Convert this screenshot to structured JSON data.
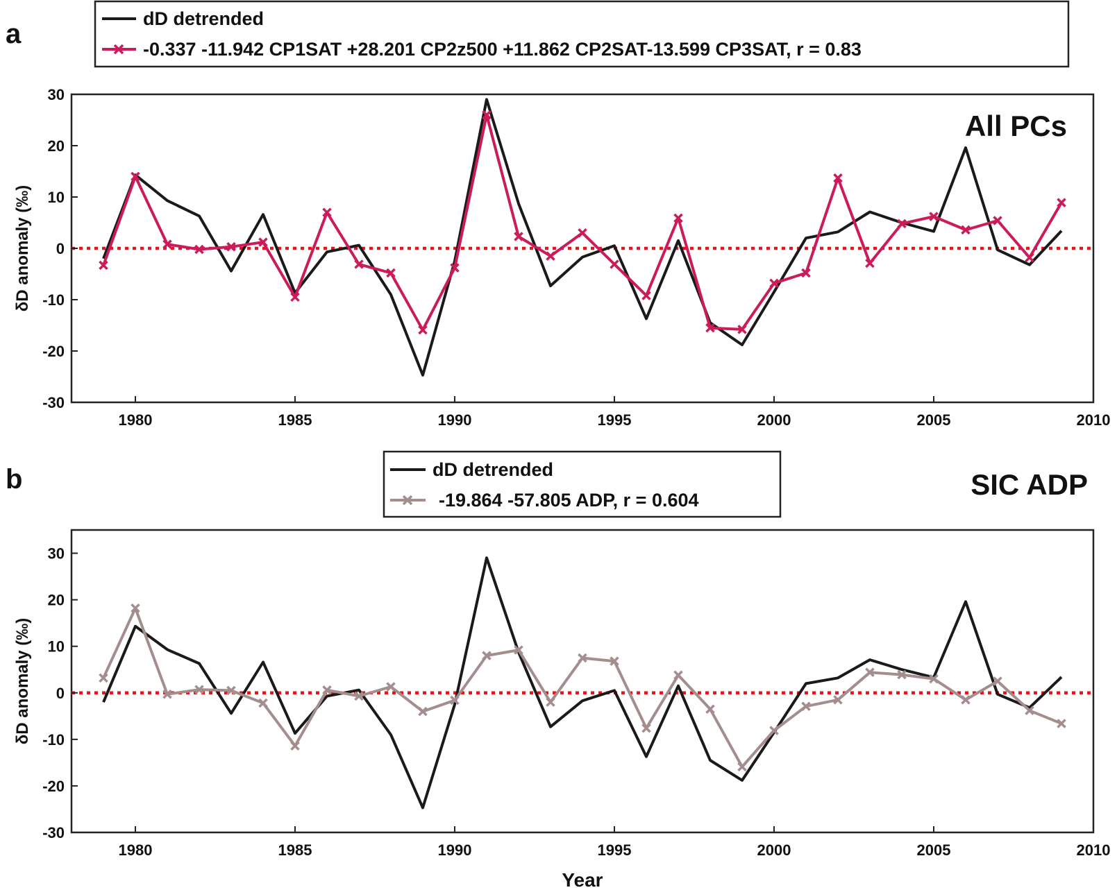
{
  "chart_data": [
    {
      "type": "line",
      "panel_label": "a",
      "annotation": "All PCs",
      "xlabel": "",
      "ylabel": "δD anomaly (‰)",
      "xlim": [
        1978,
        2010
      ],
      "ylim": [
        -30,
        30
      ],
      "xticks": [
        1980,
        1985,
        1990,
        1995,
        2000,
        2005,
        2010
      ],
      "yticks": [
        -30,
        -20,
        -10,
        0,
        10,
        20,
        30
      ],
      "grid": false,
      "legend_position": "top",
      "zero_line": {
        "y": 0,
        "color": "#e8141b",
        "style": "dotted"
      },
      "x": [
        1979,
        1980,
        1981,
        1982,
        1983,
        1984,
        1985,
        1986,
        1987,
        1988,
        1989,
        1990,
        1991,
        1992,
        1993,
        1994,
        1995,
        1996,
        1997,
        1998,
        1999,
        2000,
        2001,
        2002,
        2003,
        2004,
        2005,
        2006,
        2007,
        2008,
        2009
      ],
      "series": [
        {
          "name": "dD detrended",
          "color": "#1a1a1a",
          "marker": "none",
          "values": [
            -2,
            14.3,
            9.3,
            6.3,
            -4.4,
            6.6,
            -8.7,
            -0.7,
            0.6,
            -9,
            -24.7,
            -2.5,
            29,
            8.7,
            -7.3,
            -1.7,
            0.5,
            -13.7,
            1.5,
            -14.5,
            -18.8,
            -8.5,
            2,
            3.2,
            7.1,
            5,
            3.3,
            19.6,
            -0.3,
            -3.2,
            3.4
          ]
        },
        {
          "name": "-0.337 -11.942 CP1SAT +28.201 CP2z500 +11.862 CP2SAT-13.599 CP3SAT,  r = 0.83",
          "color": "#cc1b5a",
          "marker": "x",
          "values": [
            -3.3,
            14,
            0.8,
            -0.2,
            0.3,
            1.2,
            -9.5,
            7,
            -3.1,
            -4.8,
            -15.9,
            -3.8,
            26,
            2.3,
            -1.5,
            3,
            -3.1,
            -9.2,
            5.9,
            -15.5,
            -15.8,
            -6.8,
            -4.8,
            13.7,
            -2.9,
            4.8,
            6.2,
            3.6,
            5.4,
            -1.8,
            8.9
          ]
        }
      ],
      "legend": {
        "entries": [
          "dD detrended",
          "-0.337 -11.942 CP1SAT +28.201 CP2z500 +11.862 CP2SAT-13.599 CP3SAT,  r = 0.83"
        ]
      }
    },
    {
      "type": "line",
      "panel_label": "b",
      "annotation": "SIC ADP",
      "xlabel": "Year",
      "ylabel": "δD anomaly (‰)",
      "xlim": [
        1978,
        2010
      ],
      "ylim": [
        -30,
        35
      ],
      "xticks": [
        1980,
        1985,
        1990,
        1995,
        2000,
        2005,
        2010
      ],
      "yticks": [
        -30,
        -20,
        -10,
        0,
        10,
        20,
        30
      ],
      "grid": false,
      "legend_position": "top-center",
      "zero_line": {
        "y": 0,
        "color": "#e8141b",
        "style": "dotted"
      },
      "x": [
        1979,
        1980,
        1981,
        1982,
        1983,
        1984,
        1985,
        1986,
        1987,
        1988,
        1989,
        1990,
        1991,
        1992,
        1993,
        1994,
        1995,
        1996,
        1997,
        1998,
        1999,
        2000,
        2001,
        2002,
        2003,
        2004,
        2005,
        2006,
        2007,
        2008,
        2009
      ],
      "series": [
        {
          "name": "dD detrended",
          "color": "#1a1a1a",
          "marker": "none",
          "values": [
            -2,
            14.3,
            9.3,
            6.3,
            -4.4,
            6.6,
            -8.7,
            -0.7,
            0.6,
            -9,
            -24.7,
            -2.5,
            29,
            8.7,
            -7.3,
            -1.7,
            0.5,
            -13.7,
            1.5,
            -14.5,
            -18.8,
            -8.5,
            2,
            3.2,
            7.1,
            5,
            3.3,
            19.6,
            -0.3,
            -3.2,
            3.4
          ]
        },
        {
          "name": "-19.864 -57.805 ADP,  r = 0.604",
          "color": "#a38d8d",
          "marker": "x",
          "values": [
            3.2,
            18.2,
            -0.3,
            0.7,
            0.5,
            -2.2,
            -11.4,
            0.6,
            -0.7,
            1.3,
            -4,
            -1.6,
            8,
            9.2,
            -2,
            7.5,
            6.8,
            -7.6,
            3.8,
            -3.5,
            -15.9,
            -8.1,
            -2.9,
            -1.5,
            4.4,
            3.9,
            3,
            -1.5,
            2.5,
            -3.8,
            -6.6
          ]
        }
      ],
      "legend": {
        "entries": [
          "dD detrended",
          "-19.864 -57.805 ADP,  r = 0.604"
        ]
      }
    }
  ]
}
